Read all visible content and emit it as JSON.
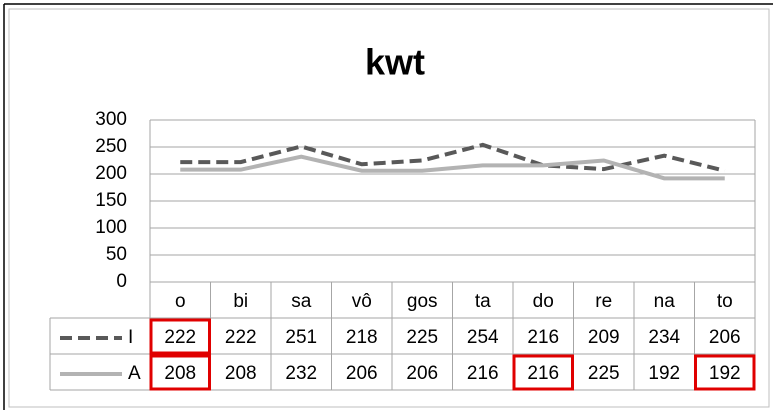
{
  "chart_data": {
    "type": "line",
    "title": "kwt",
    "categories": [
      "o",
      "bi",
      "sa",
      "vô",
      "gos",
      "ta",
      "do",
      "re",
      "na",
      "to"
    ],
    "series": [
      {
        "name": "I",
        "color": "#595959",
        "dashed": true,
        "values": [
          222,
          222,
          251,
          218,
          225,
          254,
          216,
          209,
          234,
          206
        ]
      },
      {
        "name": "A",
        "color": "#b3b3b3",
        "dashed": false,
        "values": [
          208,
          208,
          232,
          206,
          206,
          216,
          216,
          225,
          192,
          192
        ]
      }
    ],
    "ylim": [
      0,
      300
    ],
    "yticks": [
      0,
      50,
      100,
      150,
      200,
      250,
      300
    ],
    "grid": true
  }
}
